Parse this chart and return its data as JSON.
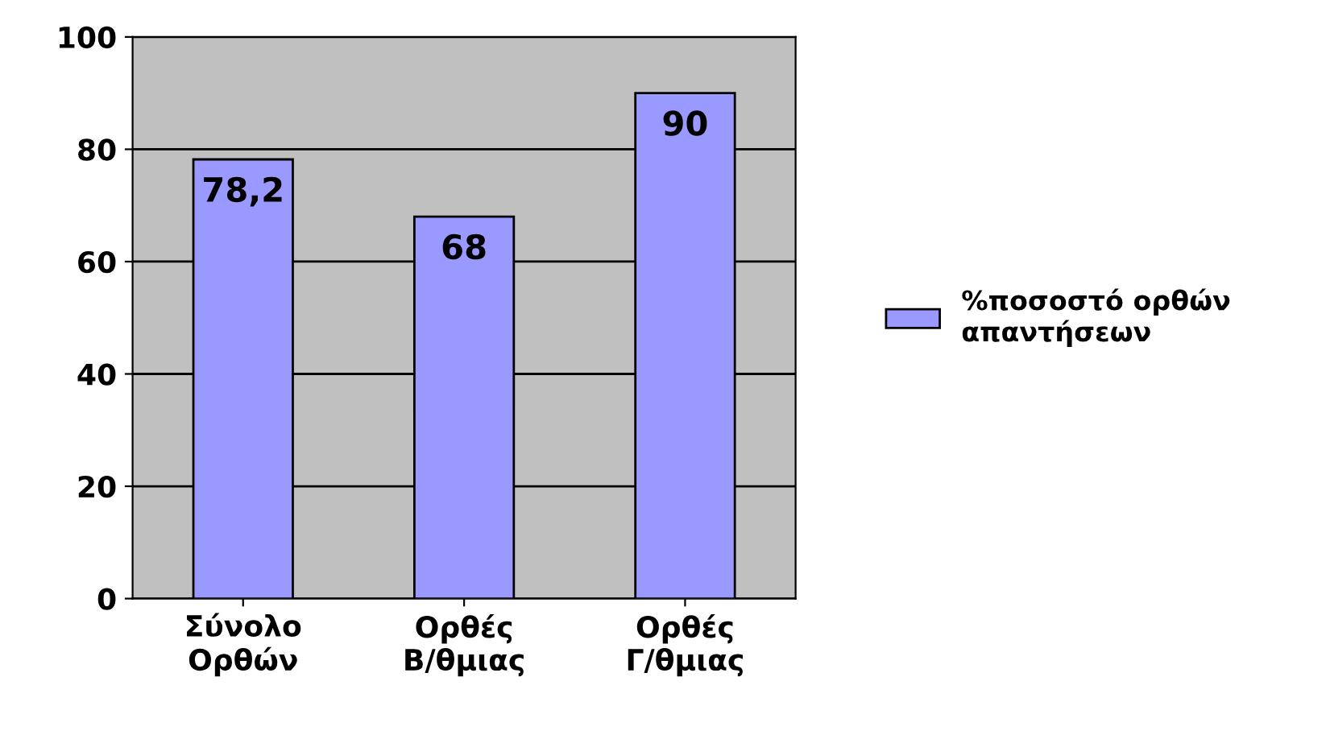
{
  "chart_data": {
    "type": "bar",
    "categories": [
      "Σύνολο\nΟρθών",
      "Ορθές\nΒ/θμιας",
      "Ορθές\nΓ/θμιας"
    ],
    "series": [
      {
        "name": "%ποσοστό ορθών\nαπαντήσεων",
        "color": "#9999ff",
        "values": [
          78.2,
          68,
          90
        ],
        "value_labels": [
          "78,2",
          "68",
          "90"
        ]
      }
    ],
    "ylim": [
      0,
      100
    ],
    "yticks": [
      0,
      20,
      40,
      60,
      80,
      100
    ],
    "grid": "y",
    "legend": "right"
  }
}
